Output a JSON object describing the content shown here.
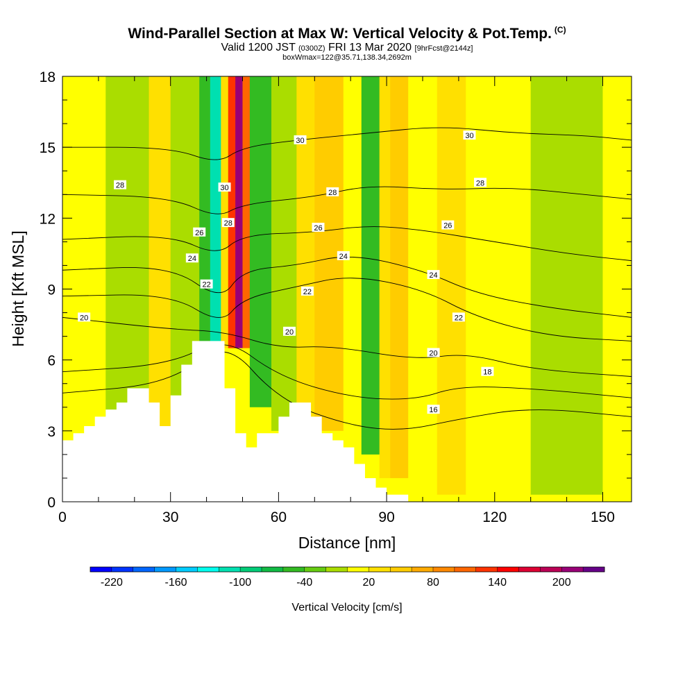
{
  "header": {
    "title": "Wind-Parallel Section at Max W: Vertical Velocity & Pot.Temp.",
    "title_suffix": "(C)",
    "valid_prefix": "Valid 1200 JST",
    "valid_zulu": "(0300Z)",
    "valid_date": "FRI 13 Mar 2020",
    "valid_fcst": "[9hrFcst@2144z]",
    "box_info": "boxWmax=122@35.71,138.34,2692m"
  },
  "chart_data": {
    "type": "heatmap",
    "xlabel": "Distance [nm]",
    "ylabel": "Height [Kft MSL]",
    "xlim": [
      0,
      158
    ],
    "ylim": [
      0,
      18
    ],
    "x_ticks": [
      "0",
      "30",
      "60",
      "90",
      "120",
      "150"
    ],
    "y_ticks": [
      "0",
      "3",
      "6",
      "9",
      "12",
      "15",
      "18"
    ],
    "x_tick_values": [
      0,
      30,
      60,
      90,
      120,
      150
    ],
    "y_tick_values": [
      0,
      3,
      6,
      9,
      12,
      15,
      18
    ],
    "colorbar": {
      "title": "Vertical Velocity [cm/s]",
      "tick_labels": [
        "-220",
        "-160",
        "-100",
        "-40",
        "20",
        "80",
        "140",
        "200"
      ],
      "tick_values": [
        -220,
        -160,
        -100,
        -40,
        20,
        80,
        140,
        200
      ],
      "range": [
        -240,
        240
      ],
      "colors": [
        "#0000ff",
        "#0033ff",
        "#0066ff",
        "#0099ff",
        "#00ccff",
        "#00ffee",
        "#00e0b0",
        "#00cc77",
        "#11bb44",
        "#33bb22",
        "#66cc11",
        "#aadd00",
        "#ffff00",
        "#ffe000",
        "#ffcc00",
        "#ffaa00",
        "#ff8800",
        "#ff6600",
        "#ff3300",
        "#ff0000",
        "#dd0033",
        "#bb0055",
        "#990077",
        "#660088"
      ]
    },
    "w_cells": [
      {
        "x": [
          0,
          12
        ],
        "y": [
          0,
          18
        ],
        "w": 10
      },
      {
        "x": [
          12,
          24
        ],
        "y": [
          0,
          18
        ],
        "w": -10
      },
      {
        "x": [
          24,
          30
        ],
        "y": [
          0,
          18
        ],
        "w": 20
      },
      {
        "x": [
          30,
          38
        ],
        "y": [
          0,
          18
        ],
        "w": -20
      },
      {
        "x": [
          38,
          41
        ],
        "y": [
          6.5,
          18
        ],
        "w": -50
      },
      {
        "x": [
          41,
          44
        ],
        "y": [
          6.5,
          18
        ],
        "w": -110
      },
      {
        "x": [
          44,
          46
        ],
        "y": [
          6.5,
          18
        ],
        "w": 30
      },
      {
        "x": [
          46,
          48
        ],
        "y": [
          6.5,
          18
        ],
        "w": 130
      },
      {
        "x": [
          48,
          50
        ],
        "y": [
          6.5,
          18
        ],
        "w": 210
      },
      {
        "x": [
          50,
          52
        ],
        "y": [
          6.5,
          18
        ],
        "w": 110
      },
      {
        "x": [
          52,
          58
        ],
        "y": [
          4,
          18
        ],
        "w": -50
      },
      {
        "x": [
          58,
          65
        ],
        "y": [
          3,
          18
        ],
        "w": -20
      },
      {
        "x": [
          65,
          70
        ],
        "y": [
          3,
          18
        ],
        "w": 20
      },
      {
        "x": [
          70,
          78
        ],
        "y": [
          3,
          18
        ],
        "w": 40
      },
      {
        "x": [
          78,
          83
        ],
        "y": [
          2.5,
          18
        ],
        "w": 10
      },
      {
        "x": [
          83,
          88
        ],
        "y": [
          2,
          18
        ],
        "w": -50
      },
      {
        "x": [
          88,
          91
        ],
        "y": [
          1,
          18
        ],
        "w": 20
      },
      {
        "x": [
          91,
          96
        ],
        "y": [
          1,
          18
        ],
        "w": 50
      },
      {
        "x": [
          96,
          104
        ],
        "y": [
          0.5,
          18
        ],
        "w": 10
      },
      {
        "x": [
          104,
          112
        ],
        "y": [
          0.3,
          18
        ],
        "w": 20
      },
      {
        "x": [
          112,
          120
        ],
        "y": [
          0.3,
          18
        ],
        "w": 10
      },
      {
        "x": [
          120,
          130
        ],
        "y": [
          0.3,
          18
        ],
        "w": 15
      },
      {
        "x": [
          130,
          140
        ],
        "y": [
          0.3,
          18
        ],
        "w": -5
      },
      {
        "x": [
          140,
          150
        ],
        "y": [
          0.3,
          18
        ],
        "w": -15
      },
      {
        "x": [
          150,
          158
        ],
        "y": [
          0.3,
          18
        ],
        "w": 10
      }
    ],
    "terrain": [
      [
        0,
        2.6
      ],
      [
        3,
        2.6
      ],
      [
        3,
        2.9
      ],
      [
        6,
        2.9
      ],
      [
        6,
        3.2
      ],
      [
        9,
        3.2
      ],
      [
        9,
        3.6
      ],
      [
        12,
        3.6
      ],
      [
        12,
        3.9
      ],
      [
        15,
        3.9
      ],
      [
        15,
        4.2
      ],
      [
        18,
        4.2
      ],
      [
        18,
        4.8
      ],
      [
        24,
        4.8
      ],
      [
        24,
        4.2
      ],
      [
        27,
        4.2
      ],
      [
        27,
        3.2
      ],
      [
        30,
        3.2
      ],
      [
        30,
        4.5
      ],
      [
        33,
        4.5
      ],
      [
        33,
        5.8
      ],
      [
        36,
        5.8
      ],
      [
        36,
        6.8
      ],
      [
        45,
        6.8
      ],
      [
        45,
        4.8
      ],
      [
        48,
        4.8
      ],
      [
        48,
        2.9
      ],
      [
        51,
        2.9
      ],
      [
        51,
        2.3
      ],
      [
        54,
        2.3
      ],
      [
        54,
        2.9
      ],
      [
        60,
        2.9
      ],
      [
        60,
        3.6
      ],
      [
        63,
        3.6
      ],
      [
        63,
        4.2
      ],
      [
        69,
        4.2
      ],
      [
        69,
        3.6
      ],
      [
        72,
        3.6
      ],
      [
        72,
        2.9
      ],
      [
        75,
        2.9
      ],
      [
        75,
        2.6
      ],
      [
        78,
        2.6
      ],
      [
        78,
        2.3
      ],
      [
        81,
        2.3
      ],
      [
        81,
        1.6
      ],
      [
        84,
        1.6
      ],
      [
        84,
        1.0
      ],
      [
        87,
        1.0
      ],
      [
        87,
        0.6
      ],
      [
        90,
        0.6
      ],
      [
        90,
        0.3
      ],
      [
        96,
        0.3
      ],
      [
        96,
        0.0
      ],
      [
        158,
        0.0
      ]
    ],
    "theta_isentropes": [
      {
        "value": 16,
        "points": [
          [
            0,
            4.6
          ],
          [
            30,
            5.0
          ],
          [
            45,
            6.9
          ],
          [
            60,
            4.3
          ],
          [
            80,
            3.2
          ],
          [
            95,
            3.0
          ],
          [
            110,
            3.5
          ],
          [
            130,
            4.0
          ],
          [
            158,
            3.6
          ]
        ]
      },
      {
        "value": 18,
        "points": [
          [
            0,
            5.5
          ],
          [
            30,
            5.8
          ],
          [
            45,
            7.0
          ],
          [
            60,
            5.3
          ],
          [
            80,
            4.4
          ],
          [
            98,
            4.3
          ],
          [
            110,
            4.9
          ],
          [
            130,
            4.8
          ],
          [
            158,
            4.4
          ]
        ]
      },
      {
        "value": 20,
        "points": [
          [
            0,
            7.8
          ],
          [
            30,
            7.3
          ],
          [
            45,
            7.2
          ],
          [
            60,
            6.5
          ],
          [
            75,
            6.6
          ],
          [
            98,
            6.0
          ],
          [
            112,
            6.3
          ],
          [
            130,
            5.6
          ],
          [
            158,
            5.3
          ]
        ]
      },
      {
        "value": 22,
        "points": [
          [
            0,
            8.7
          ],
          [
            30,
            8.8
          ],
          [
            44,
            7.5
          ],
          [
            50,
            8.6
          ],
          [
            65,
            9.1
          ],
          [
            80,
            9.6
          ],
          [
            100,
            9.0
          ],
          [
            115,
            7.8
          ],
          [
            135,
            7.0
          ],
          [
            158,
            6.8
          ]
        ]
      },
      {
        "value": 24,
        "points": [
          [
            0,
            9.8
          ],
          [
            30,
            10.0
          ],
          [
            44,
            8.5
          ],
          [
            50,
            9.8
          ],
          [
            65,
            10.0
          ],
          [
            80,
            10.5
          ],
          [
            100,
            9.8
          ],
          [
            115,
            8.8
          ],
          [
            135,
            8.2
          ],
          [
            158,
            7.8
          ]
        ]
      },
      {
        "value": 26,
        "points": [
          [
            0,
            11.1
          ],
          [
            30,
            11.3
          ],
          [
            43,
            10.4
          ],
          [
            50,
            11.3
          ],
          [
            70,
            11.4
          ],
          [
            85,
            11.7
          ],
          [
            100,
            11.5
          ],
          [
            120,
            11.0
          ],
          [
            140,
            10.5
          ],
          [
            158,
            10.2
          ]
        ]
      },
      {
        "value": 28,
        "points": [
          [
            0,
            13.0
          ],
          [
            30,
            12.9
          ],
          [
            43,
            12.0
          ],
          [
            50,
            12.6
          ],
          [
            70,
            12.9
          ],
          [
            85,
            13.4
          ],
          [
            105,
            13.2
          ],
          [
            125,
            13.3
          ],
          [
            145,
            13.0
          ],
          [
            158,
            12.8
          ]
        ]
      },
      {
        "value": 30,
        "points": [
          [
            0,
            15.0
          ],
          [
            30,
            15.0
          ],
          [
            43,
            14.3
          ],
          [
            50,
            15.0
          ],
          [
            65,
            15.3
          ],
          [
            85,
            15.6
          ],
          [
            105,
            15.9
          ],
          [
            125,
            15.6
          ],
          [
            145,
            15.5
          ],
          [
            158,
            15.3
          ]
        ]
      }
    ],
    "contour_labels": [
      {
        "text": "20",
        "x": 6,
        "y": 7.8
      },
      {
        "text": "28",
        "x": 16,
        "y": 13.4
      },
      {
        "text": "22",
        "x": 40,
        "y": 9.2
      },
      {
        "text": "24",
        "x": 36,
        "y": 10.3
      },
      {
        "text": "26",
        "x": 38,
        "y": 11.4
      },
      {
        "text": "30",
        "x": 45,
        "y": 13.3
      },
      {
        "text": "28",
        "x": 46,
        "y": 11.8
      },
      {
        "text": "20",
        "x": 63,
        "y": 7.2
      },
      {
        "text": "22",
        "x": 68,
        "y": 8.9
      },
      {
        "text": "26",
        "x": 71,
        "y": 11.6
      },
      {
        "text": "28",
        "x": 75,
        "y": 13.1
      },
      {
        "text": "24",
        "x": 78,
        "y": 10.4
      },
      {
        "text": "30",
        "x": 66,
        "y": 15.3
      },
      {
        "text": "16",
        "x": 103,
        "y": 3.9
      },
      {
        "text": "20",
        "x": 103,
        "y": 6.3
      },
      {
        "text": "18",
        "x": 118,
        "y": 5.5
      },
      {
        "text": "22",
        "x": 110,
        "y": 7.8
      },
      {
        "text": "24",
        "x": 103,
        "y": 9.6
      },
      {
        "text": "26",
        "x": 107,
        "y": 11.7
      },
      {
        "text": "28",
        "x": 116,
        "y": 13.5
      },
      {
        "text": "30",
        "x": 113,
        "y": 15.5
      }
    ]
  }
}
